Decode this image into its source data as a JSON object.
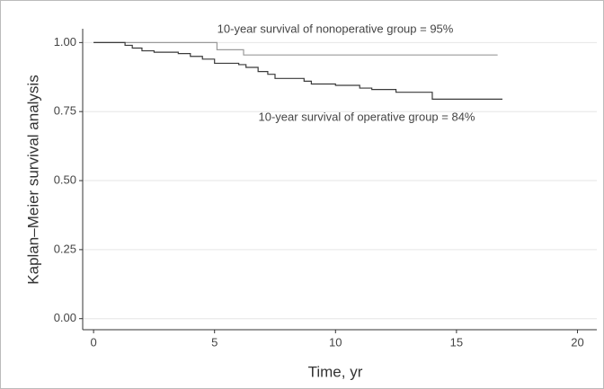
{
  "chart_data": {
    "type": "step",
    "xlabel": "Time, yr",
    "ylabel": "Kaplan–Meier survival analysis",
    "annotations": [
      "10-year survival of nonoperative group = 95%",
      "10-year survival of operative group = 84%"
    ],
    "series": [
      {
        "name": "Nonoperative",
        "color": "#9a9a9a",
        "x": [
          0,
          1.1,
          5.1,
          6.2,
          16.7
        ],
        "values": [
          1.0,
          1.0,
          0.974,
          0.955,
          0.955
        ]
      },
      {
        "name": "Operative",
        "color": "#3a3a3a",
        "x": [
          0,
          1.1,
          1.3,
          1.6,
          2.0,
          2.5,
          3.5,
          4.0,
          4.5,
          5.0,
          6.0,
          6.3,
          6.8,
          7.2,
          7.5,
          8.7,
          9.0,
          10.0,
          11.0,
          11.5,
          12.5,
          14.0,
          16.9
        ],
        "values": [
          1.0,
          1.0,
          0.99,
          0.98,
          0.97,
          0.965,
          0.96,
          0.95,
          0.94,
          0.925,
          0.92,
          0.91,
          0.895,
          0.885,
          0.87,
          0.86,
          0.85,
          0.845,
          0.835,
          0.83,
          0.82,
          0.795,
          0.795
        ]
      }
    ],
    "xlim": [
      -0.45,
      20.8
    ],
    "xticks": [
      0,
      5,
      10,
      15,
      20
    ],
    "ylim": [
      -0.04,
      1.05
    ],
    "yticks": [
      {
        "value": 0,
        "label": "0.00"
      },
      {
        "value": 0.25,
        "label": "0.25"
      },
      {
        "value": 0.5,
        "label": "0.50"
      },
      {
        "value": 0.75,
        "label": "0.75"
      },
      {
        "value": 1,
        "label": "1.00"
      }
    ],
    "grid": true
  }
}
